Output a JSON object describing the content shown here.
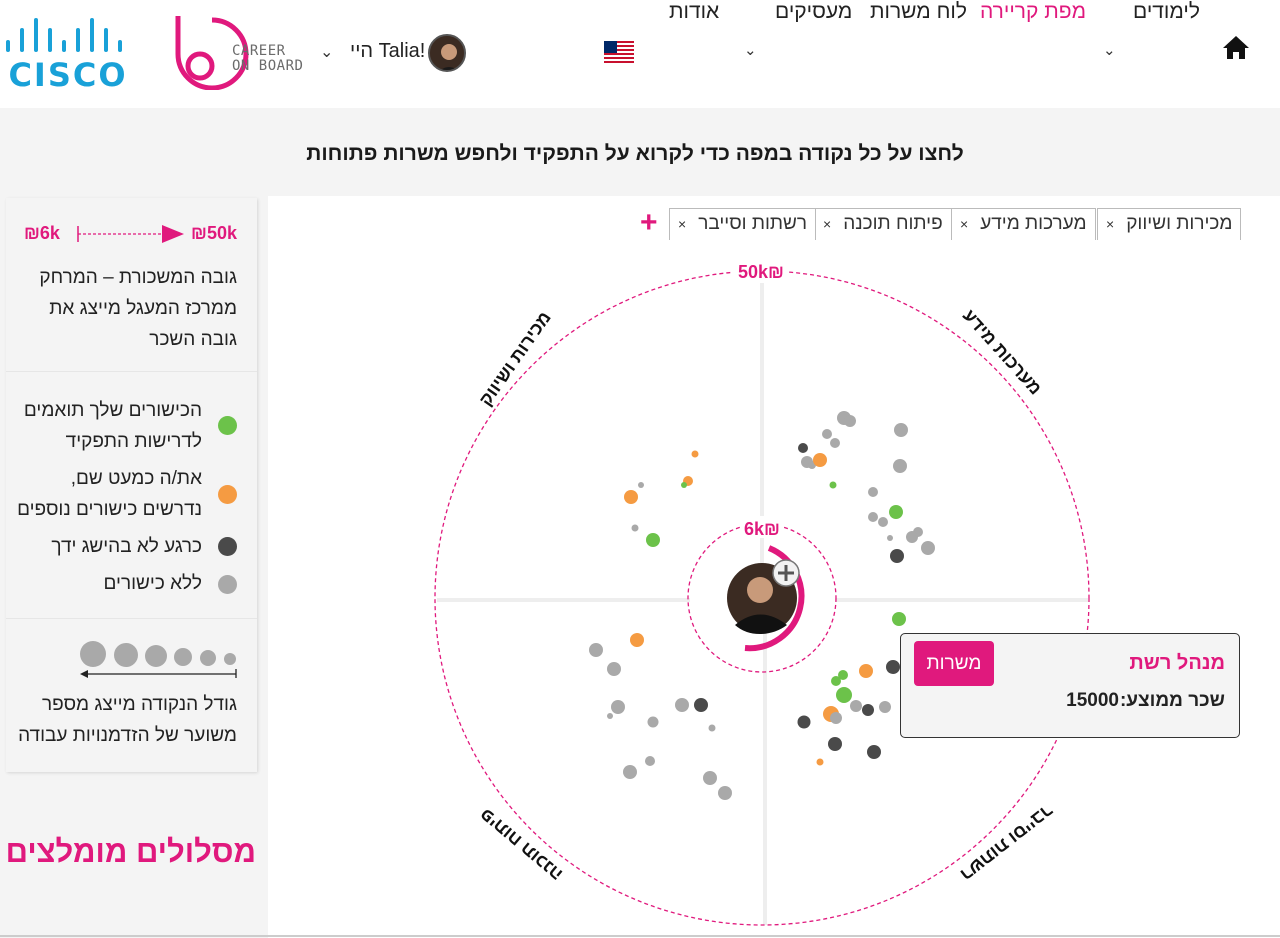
{
  "header": {
    "cisco_logo_text": "CISCO",
    "brand_line1": "CAREER",
    "brand_line2": "ON BOARD",
    "greeting": "היי Talia!",
    "nav": [
      {
        "label": "לימודים",
        "has_dropdown": true
      },
      {
        "label": "מפת קריירה",
        "active": true
      },
      {
        "label": "לוח משרות"
      },
      {
        "label": "מעסיקים",
        "has_dropdown": true
      },
      {
        "label": "אודות"
      }
    ],
    "home_icon": "home-icon",
    "flag_icon": "us-flag-icon"
  },
  "instruction": "לחצו על כל נקודה במפה כדי לקרוא על התפקיד ולחפש משרות פתוחות",
  "filters": {
    "chips": [
      "מכירות ושיווק",
      "מערכות מידע",
      "פיתוח תוכנה",
      "רשתות וסייבר"
    ],
    "remove_symbol": "×",
    "add_symbol": "+"
  },
  "map": {
    "max_salary_label": "50k₪",
    "min_salary_label": "6k₪",
    "quadrants": [
      "מכירות ושיווק",
      "מערכות מידע",
      "פיתוח תוכנה",
      "רשתות וסייבר"
    ],
    "colors": {
      "match": "#6cc24a",
      "almost": "#f59b42",
      "not_yet": "#4a4a4a",
      "none": "#a9a9a9",
      "accent": "#e0197d"
    }
  },
  "legend": {
    "salary_high": "50k₪",
    "salary_low": "6k₪",
    "salary_desc": [
      "גובה המשכורת – המרחק",
      "ממרכז המעגל מייצג את",
      "גובה השכר"
    ],
    "statuses": [
      {
        "lines": [
          "הכישורים שלך תואמים",
          "לדרישות התפקיד"
        ],
        "color": "#6cc24a"
      },
      {
        "lines": [
          "את/ה כמעט שם,",
          "נדרשים כישורים נוספים"
        ],
        "color": "#f59b42"
      },
      {
        "lines": [
          "כרגע לא בהישג ידך"
        ],
        "color": "#4a4a4a"
      },
      {
        "lines": [
          "ללא כישורים"
        ],
        "color": "#a9a9a9"
      }
    ],
    "size_desc": [
      "גודל הנקודה מייצג מספר",
      "משוער של הזדמנויות עבודה"
    ]
  },
  "recommended_title": "מסלולים מומלצים",
  "tooltip": {
    "title": "מנהל רשת",
    "salary_label": "שכר ממוצע:",
    "salary_value": "15000",
    "button_label": "משרות"
  }
}
